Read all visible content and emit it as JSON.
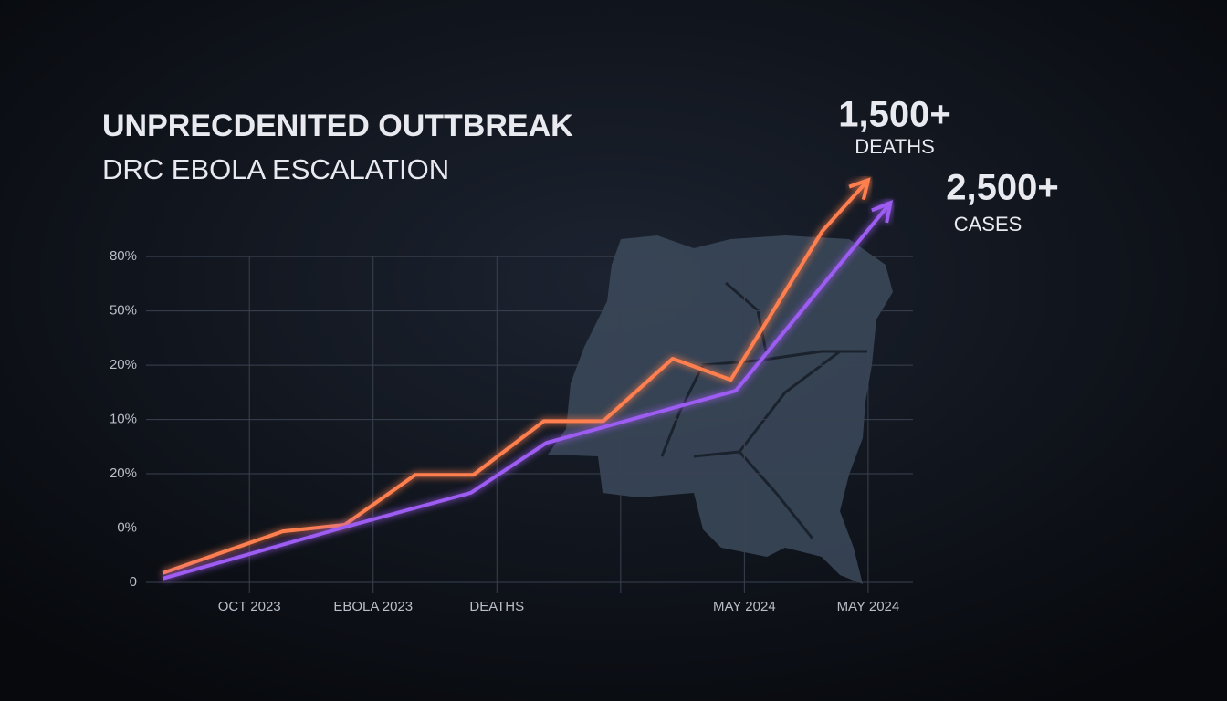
{
  "chart_data": {
    "type": "line",
    "title": "UNPRECDENITED OUTTBREAK",
    "subtitle": "DRC EBOLA ESCALATION",
    "y_levels": [
      "0",
      "0%",
      "20%",
      "10%",
      "20%",
      "50%",
      "80%"
    ],
    "categories": [
      "OCT 2023",
      "EBOLA 2023",
      "DEATHS",
      null,
      "MAY 2024",
      "MAY 2024"
    ],
    "xlim": [
      -1.3,
      6.1
    ],
    "ylim": [
      0,
      7.6
    ],
    "grid": true,
    "series": [
      {
        "color": "#ff7f50",
        "x": [
          -0.7,
          0.27,
          0.77,
          1.34,
          1.81,
          2.38,
          2.86,
          3.42,
          3.89,
          4.63,
          5.0
        ],
        "values": [
          0.17,
          0.94,
          1.06,
          1.98,
          1.98,
          2.97,
          2.97,
          4.12,
          3.73,
          6.47,
          7.41
        ]
      },
      {
        "color": "#9d5cf2",
        "x": [
          -0.7,
          0.79,
          1.79,
          2.4,
          3.93,
          5.18
        ],
        "values": [
          0.07,
          1.03,
          1.65,
          2.57,
          3.53,
          6.99
        ]
      }
    ],
    "annotations": [
      {
        "value": "1,500+",
        "label": "DEATHS"
      },
      {
        "value": "2,500+",
        "label": "CASES"
      }
    ]
  }
}
